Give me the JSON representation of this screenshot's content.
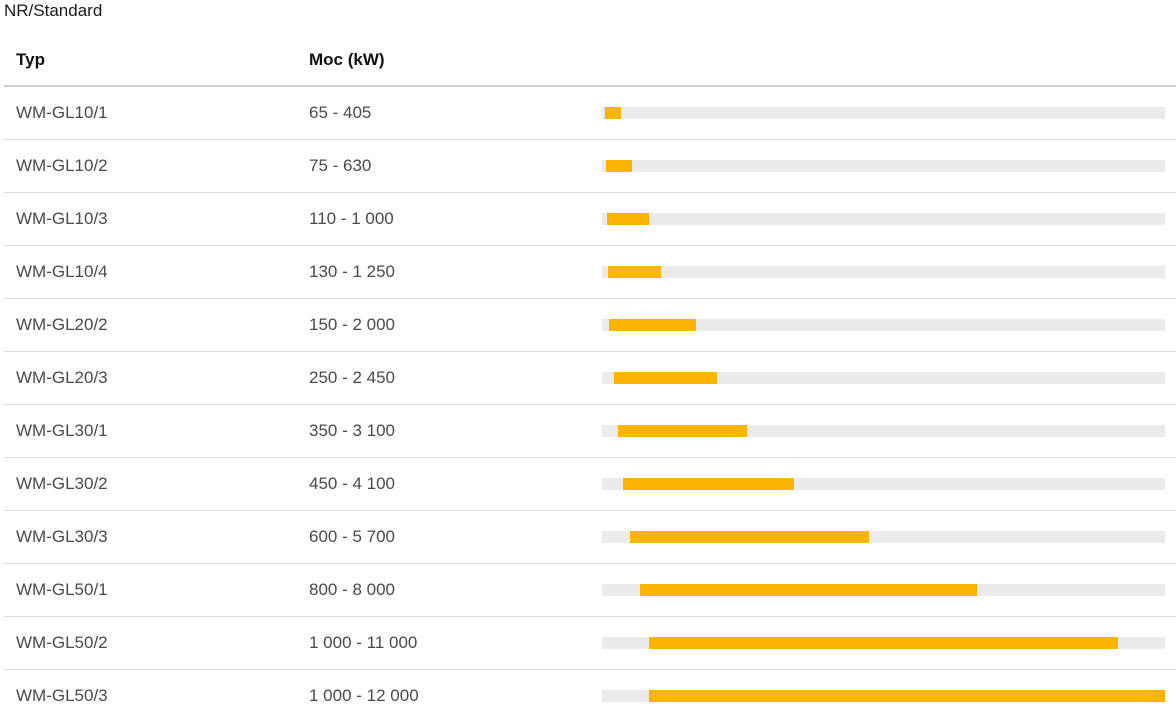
{
  "title": "NR/Standard",
  "headers": {
    "typ": "Typ",
    "moc": "Moc (kW)"
  },
  "colors": {
    "fill": "#fbb500",
    "track": "#ebebeb"
  },
  "scale_max_kw": 12000,
  "rows": [
    {
      "typ": "WM-GL10/1",
      "moc": "65 - 405",
      "min_kw": 65,
      "max_kw": 405
    },
    {
      "typ": "WM-GL10/2",
      "moc": "75 - 630",
      "min_kw": 75,
      "max_kw": 630
    },
    {
      "typ": "WM-GL10/3",
      "moc": "110 - 1 000",
      "min_kw": 110,
      "max_kw": 1000
    },
    {
      "typ": "WM-GL10/4",
      "moc": "130 - 1 250",
      "min_kw": 130,
      "max_kw": 1250
    },
    {
      "typ": "WM-GL20/2",
      "moc": "150 - 2 000",
      "min_kw": 150,
      "max_kw": 2000
    },
    {
      "typ": "WM-GL20/3",
      "moc": "250 - 2 450",
      "min_kw": 250,
      "max_kw": 2450
    },
    {
      "typ": "WM-GL30/1",
      "moc": "350 - 3 100",
      "min_kw": 350,
      "max_kw": 3100
    },
    {
      "typ": "WM-GL30/2",
      "moc": "450 - 4 100",
      "min_kw": 450,
      "max_kw": 4100
    },
    {
      "typ": "WM-GL30/3",
      "moc": "600 - 5 700",
      "min_kw": 600,
      "max_kw": 5700
    },
    {
      "typ": "WM-GL50/1",
      "moc": "800 - 8 000",
      "min_kw": 800,
      "max_kw": 8000
    },
    {
      "typ": "WM-GL50/2",
      "moc": "1 000 - 11 000",
      "min_kw": 1000,
      "max_kw": 11000
    },
    {
      "typ": "WM-GL50/3",
      "moc": "1 000 - 12 000",
      "min_kw": 1000,
      "max_kw": 12000
    }
  ]
}
